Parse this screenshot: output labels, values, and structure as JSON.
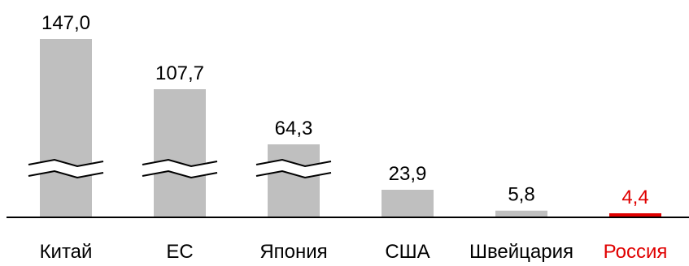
{
  "chart_data": {
    "type": "bar",
    "title": "",
    "xlabel": "",
    "ylabel": "",
    "categories": [
      "Китай",
      "ЕС",
      "Япония",
      "США",
      "Швейцария",
      "Россия"
    ],
    "values": [
      147.0,
      107.7,
      64.3,
      23.9,
      5.8,
      4.4
    ],
    "value_labels": [
      "147,0",
      "107,7",
      "64,3",
      "23,9",
      "5,8",
      "4,4"
    ],
    "axis_broken_for": [
      "Китай",
      "ЕС",
      "Япония"
    ],
    "highlight_category": "Россия",
    "grid": false,
    "legend": "none"
  },
  "colors": {
    "bar": "#bfbfbf",
    "highlight": "#e00000",
    "axis": "#000000",
    "text": "#000000"
  }
}
